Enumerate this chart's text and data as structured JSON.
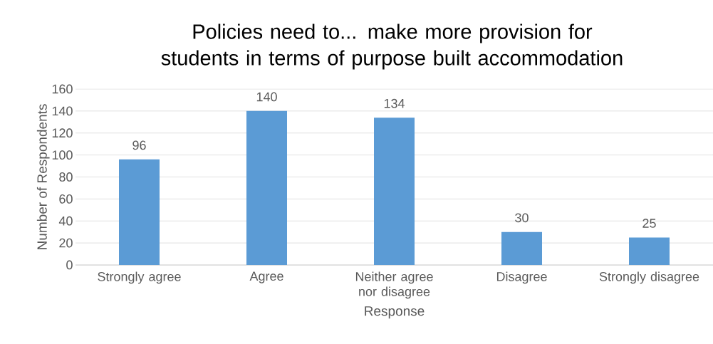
{
  "chart_data": {
    "type": "bar",
    "title": "Policies need to... make more provision for students in terms of purpose built accommodation",
    "xlabel": "Response",
    "ylabel": "Number of Respondents",
    "categories": [
      "Strongly agree",
      "Agree",
      "Neither agree nor disagree",
      "Disagree",
      "Strongly disagree"
    ],
    "values": [
      96,
      140,
      134,
      30,
      25
    ],
    "color": "#5b9bd5",
    "ylim": [
      0,
      160
    ],
    "yticks": [
      0,
      20,
      40,
      60,
      80,
      100,
      120,
      140,
      160
    ],
    "grid": "y",
    "data_labels": true
  }
}
